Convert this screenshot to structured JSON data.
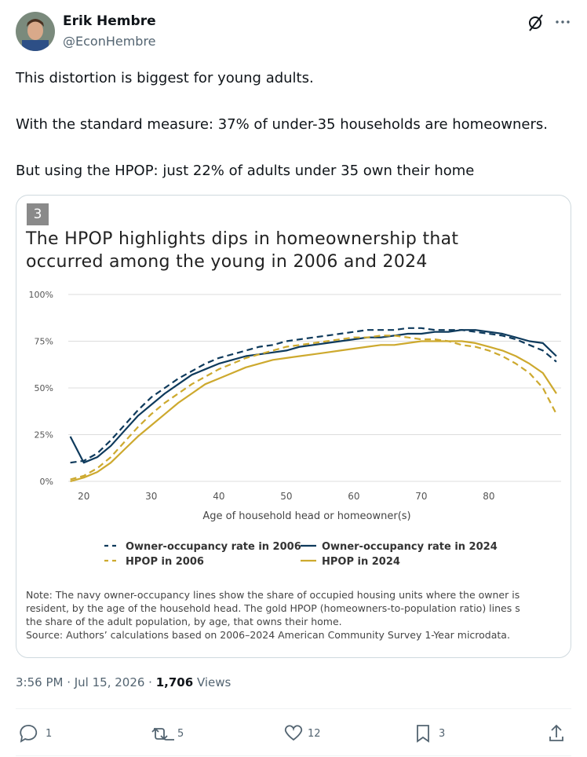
{
  "tweet": {
    "author": {
      "name": "Erik Hembre",
      "handle": "@EconHembre"
    },
    "paragraphs": [
      "This distortion is biggest for young adults.",
      "With the standard measure: 37% of under-35 households are homeowners.",
      "But using the HPOP: just 22% of adults under 35 own their home"
    ],
    "card": {
      "badge": "3",
      "note_lines": [
        "Note: The navy owner-occupancy lines show the share of occupied housing units where the owner is",
        "resident, by the age of the household head. The gold HPOP (homeowners-to-population ratio) lines s",
        "the share of the adult population, by age, that owns their home.",
        "Source: Authors’ calculations based on 2006–2024 American Community Survey 1-Year microdata."
      ]
    },
    "timestamp": "3:56 PM · Jul 15, 2026 · ",
    "views": "1,706",
    "views_label": "Views",
    "actions": {
      "replies": "1",
      "reposts": "5",
      "likes": "12",
      "bookmarks": "3"
    }
  },
  "chart_data": {
    "type": "line",
    "title": "The HPOP highlights dips in homeownership that occurred among the young in 2006 and 2024",
    "x_label": "Age of household head or homeowner(s)",
    "x": [
      18,
      20,
      22,
      24,
      26,
      28,
      30,
      32,
      34,
      36,
      38,
      40,
      42,
      44,
      46,
      48,
      50,
      52,
      54,
      56,
      58,
      60,
      62,
      64,
      66,
      68,
      70,
      72,
      74,
      76,
      78,
      80,
      82,
      84,
      86,
      88,
      90
    ],
    "xlim": [
      17.7,
      90.7
    ],
    "xticks": [
      20,
      30,
      40,
      50,
      60,
      70,
      80
    ],
    "ylim": [
      0,
      100
    ],
    "yticks": [
      {
        "value": 0,
        "label": "0%"
      },
      {
        "value": 25,
        "label": "25%"
      },
      {
        "value": 50,
        "label": "50%"
      },
      {
        "value": 75,
        "label": "75%"
      },
      {
        "value": 100,
        "label": "100%"
      }
    ],
    "grid": true,
    "series": [
      {
        "name": "Owner-occupancy rate in 2006",
        "color": "#0e3a5c",
        "style": "dashed",
        "values": [
          10,
          11,
          15,
          22,
          30,
          38,
          45,
          50,
          55,
          59,
          63,
          66,
          68,
          70,
          72,
          73,
          75,
          76,
          77,
          78,
          79,
          80,
          81,
          81,
          81,
          82,
          82,
          81,
          81,
          81,
          80,
          79,
          78,
          76,
          73,
          70,
          64
        ]
      },
      {
        "name": "Owner-occupancy rate in 2024",
        "color": "#0e3a5c",
        "style": "solid",
        "values": [
          24,
          10,
          13,
          19,
          27,
          35,
          41,
          47,
          52,
          57,
          60,
          63,
          65,
          67,
          68,
          69,
          70,
          72,
          73,
          74,
          75,
          76,
          77,
          77,
          78,
          79,
          79,
          80,
          80,
          81,
          81,
          80,
          79,
          77,
          75,
          74,
          67
        ]
      },
      {
        "name": "HPOP in 2006",
        "color": "#cda92e",
        "style": "dashed",
        "values": [
          1,
          3,
          7,
          13,
          21,
          29,
          36,
          42,
          47,
          52,
          56,
          60,
          63,
          66,
          68,
          70,
          72,
          73,
          74,
          75,
          76,
          77,
          77,
          78,
          78,
          77,
          76,
          76,
          75,
          73,
          72,
          70,
          67,
          63,
          58,
          50,
          36
        ]
      },
      {
        "name": "HPOP in 2024",
        "color": "#cda92e",
        "style": "solid",
        "values": [
          0,
          2,
          5,
          10,
          17,
          24,
          30,
          36,
          42,
          47,
          52,
          55,
          58,
          61,
          63,
          65,
          66,
          67,
          68,
          69,
          70,
          71,
          72,
          73,
          73,
          74,
          75,
          75,
          75,
          75,
          74,
          72,
          70,
          67,
          63,
          58,
          47
        ]
      }
    ]
  }
}
